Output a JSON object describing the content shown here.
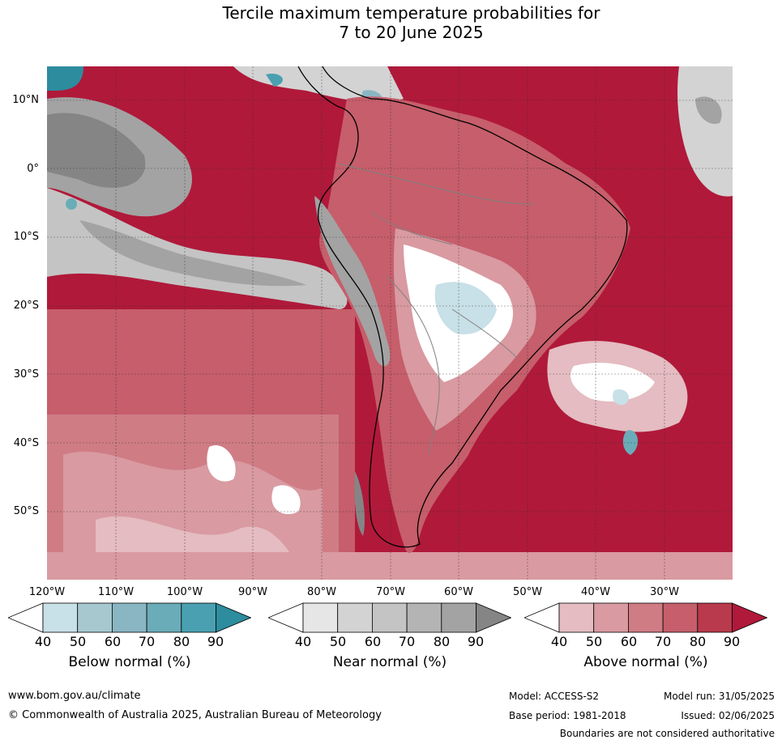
{
  "title": {
    "line1": "Tercile maximum temperature probabilities for",
    "line2": "7 to 20 June 2025"
  },
  "lat_labels": [
    "10°N",
    "0°",
    "10°S",
    "20°S",
    "30°S",
    "40°S",
    "50°S"
  ],
  "lon_labels": [
    "120°W",
    "110°W",
    "100°W",
    "90°W",
    "80°W",
    "70°W",
    "60°W",
    "50°W",
    "40°W",
    "30°W"
  ],
  "colorbars": [
    {
      "title": "Below normal (%)",
      "ticks": [
        "40",
        "50",
        "60",
        "70",
        "80",
        "90"
      ],
      "colors": [
        "#ffffff",
        "#c8e0e7",
        "#a7c8cf",
        "#8ab6c3",
        "#6aacb8",
        "#4aa0b1",
        "#2d8c9e"
      ]
    },
    {
      "title": "Near normal (%)",
      "ticks": [
        "40",
        "50",
        "60",
        "70",
        "80",
        "90"
      ],
      "colors": [
        "#ffffff",
        "#e6e6e6",
        "#d3d3d3",
        "#c4c4c4",
        "#b4b4b4",
        "#a3a3a3",
        "#858585"
      ]
    },
    {
      "title": "Above normal (%)",
      "ticks": [
        "40",
        "50",
        "60",
        "70",
        "80",
        "90"
      ],
      "colors": [
        "#ffffff",
        "#e4bcc1",
        "#d99aa1",
        "#cf7c85",
        "#c65e6b",
        "#b93a4c",
        "#b0193a"
      ]
    }
  ],
  "footer": {
    "website": "www.bom.gov.au/climate",
    "copyright": "© Commonwealth of Australia 2025, Australian Bureau of Meteorology",
    "model": "Model: ACCESS-S2",
    "base_period": "Base period: 1981-2018",
    "model_run": "Model run: 31/05/2025",
    "issued": "Issued: 02/06/2025",
    "disclaimer": "Boundaries are not considered authoritative"
  }
}
